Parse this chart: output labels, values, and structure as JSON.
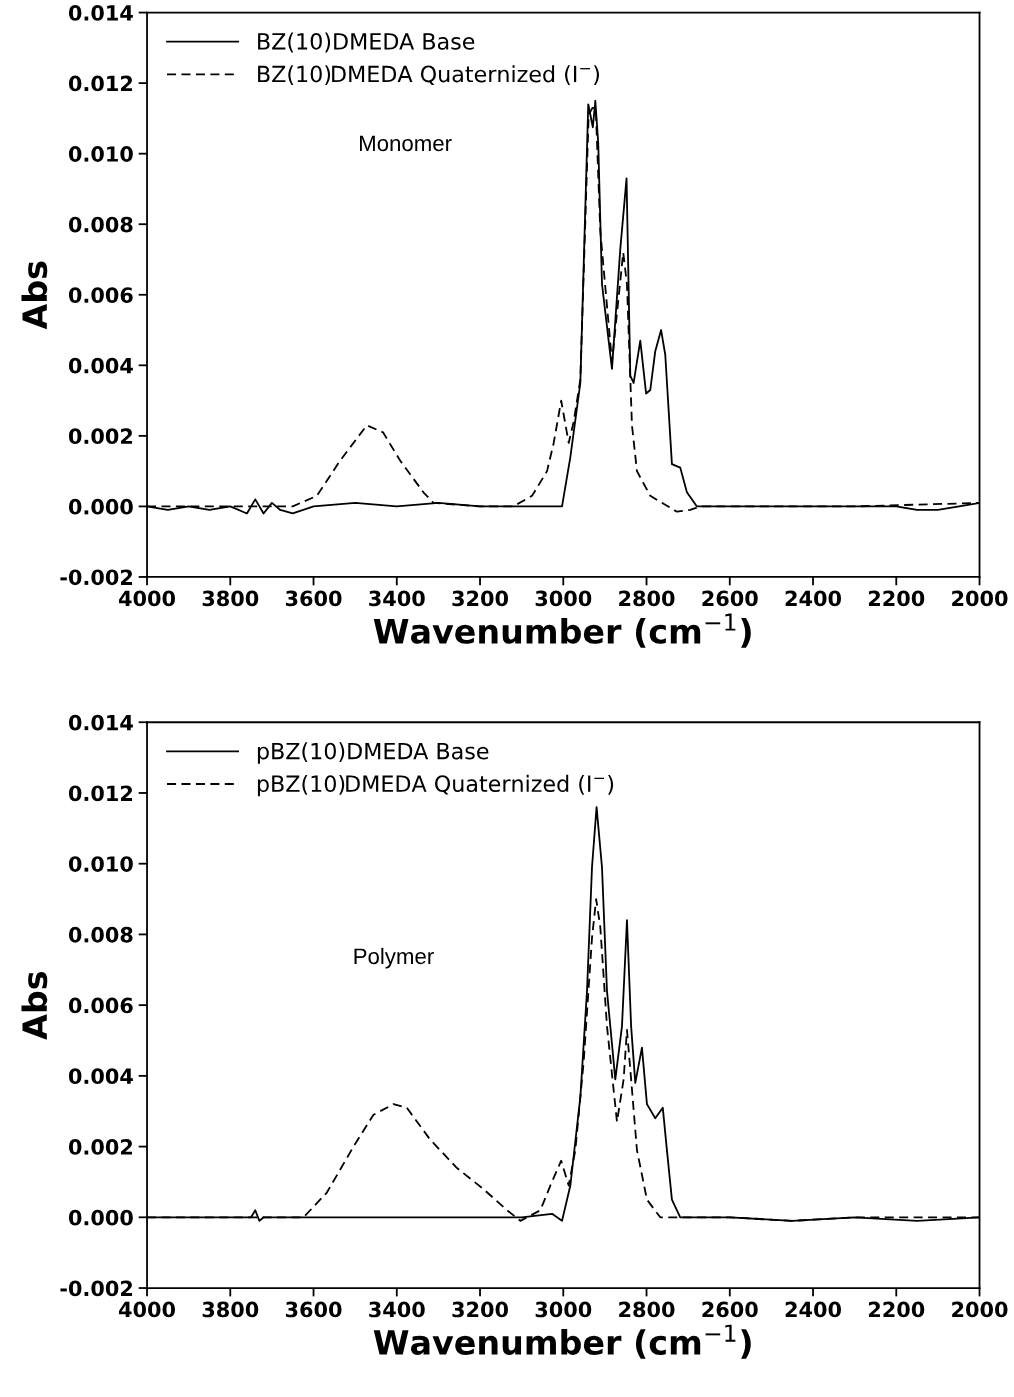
{
  "chart_data": [
    {
      "type": "line",
      "xlabel": "Wavenumber (cm$^{−1}$)",
      "ylabel": "Abs",
      "xlim": [
        4000,
        2000
      ],
      "ylim": [
        -0.002,
        0.014
      ],
      "xticks": [
        4000,
        3800,
        3600,
        3400,
        3200,
        3000,
        2800,
        2600,
        2400,
        2200,
        2000
      ],
      "yticks": [
        {
          "value": -0.002,
          "label": "-0.002"
        },
        {
          "value": 0,
          "label": "0.000"
        },
        {
          "value": 0.002,
          "label": "0.002"
        },
        {
          "value": 0.004,
          "label": "0.004"
        },
        {
          "value": 0.006,
          "label": "0.006"
        },
        {
          "value": 0.008,
          "label": "0.008"
        },
        {
          "value": 0.01,
          "label": "0.010"
        },
        {
          "value": 0.012,
          "label": "0.012"
        },
        {
          "value": 0.014,
          "label": "0.014"
        }
      ],
      "legend": "top left",
      "grid": false,
      "annotations": [
        "Monomer"
      ],
      "series": [
        {
          "name": "BZ(10)DMEDA Base",
          "color": "#000000",
          "line_style": "solid",
          "x": [
            4000,
            3950,
            3900,
            3850,
            3800,
            3760,
            3740,
            3720,
            3700,
            3680,
            3650,
            3600,
            3500,
            3400,
            3300,
            3200,
            3100,
            3003,
            2983,
            2959,
            2940,
            2929,
            2923,
            2916,
            2907,
            2883,
            2863,
            2848,
            2839,
            2831,
            2815,
            2801,
            2791,
            2779,
            2765,
            2755,
            2739,
            2719,
            2703,
            2679,
            2600,
            2500,
            2400,
            2300,
            2200,
            2150,
            2100,
            2000
          ],
          "values": [
            0.0,
            -0.0001,
            0.0,
            -0.0001,
            0.0,
            -0.0002,
            0.0002,
            -0.0002,
            0.0001,
            -0.0001,
            -0.0002,
            0.0,
            0.0001,
            0.0,
            0.0001,
            0.0,
            0.0,
            0.0,
            0.0014,
            0.0035,
            0.0114,
            0.01075,
            0.0115,
            0.0103,
            0.0063,
            0.0039,
            0.0073,
            0.0093,
            0.0037,
            0.0035,
            0.0047,
            0.0032,
            0.0033,
            0.0044,
            0.005,
            0.0043,
            0.0012,
            0.0011,
            0.0004,
            0.0,
            0.0,
            0.0,
            0.0,
            0.0,
            0.0,
            -0.0001,
            -0.0001,
            0.0001
          ]
        },
        {
          "name": "BZ(10)DMEDA Quaternized (I$^{−}$)",
          "color": "#000000",
          "line_style": "dashed",
          "x": [
            4000,
            3800,
            3650,
            3592,
            3536,
            3472,
            3433,
            3392,
            3336,
            3312,
            3200,
            3120,
            3075,
            3039,
            3023,
            3005,
            2987,
            2975,
            2959,
            2939,
            2930,
            2922,
            2911,
            2883,
            2856,
            2847,
            2835,
            2823,
            2791,
            2727,
            2695,
            2671,
            2500,
            2300,
            2000
          ],
          "values": [
            0.0,
            0.0,
            0.0,
            0.0003,
            0.0013,
            0.0023,
            0.0021,
            0.0013,
            0.0004,
            0.0001,
            0.0,
            0.0,
            0.0003,
            0.001,
            0.0018,
            0.003,
            0.0018,
            0.0024,
            0.0036,
            0.0111,
            0.0113,
            0.0113,
            0.0078,
            0.0041,
            0.0072,
            0.0063,
            0.0023,
            0.001,
            0.0003,
            -0.00015,
            -0.0001,
            0.0,
            0.0,
            0.0,
            0.0001
          ]
        }
      ]
    },
    {
      "type": "line",
      "xlabel": "Wavenumber (cm$^{−1}$)",
      "ylabel": "Abs",
      "xlim": [
        4000,
        2000
      ],
      "ylim": [
        -0.002,
        0.014
      ],
      "xticks": [
        4000,
        3800,
        3600,
        3400,
        3200,
        3000,
        2800,
        2600,
        2400,
        2200,
        2000
      ],
      "yticks": [
        {
          "value": -0.002,
          "label": "-0.002"
        },
        {
          "value": 0,
          "label": "0.000"
        },
        {
          "value": 0.002,
          "label": "0.002"
        },
        {
          "value": 0.004,
          "label": "0.004"
        },
        {
          "value": 0.006,
          "label": "0.006"
        },
        {
          "value": 0.008,
          "label": "0.008"
        },
        {
          "value": 0.01,
          "label": "0.010"
        },
        {
          "value": 0.012,
          "label": "0.012"
        },
        {
          "value": 0.014,
          "label": "0.014"
        }
      ],
      "legend": "top left",
      "grid": false,
      "annotations": [
        "Polymer"
      ],
      "series": [
        {
          "name": "pBZ(10)DMEDA Base",
          "color": "#000000",
          "line_style": "solid",
          "x": [
            4000,
            3900,
            3800,
            3750,
            3740,
            3730,
            3720,
            3600,
            3400,
            3200,
            3100,
            3027,
            3003,
            2983,
            2959,
            2943,
            2931,
            2920,
            2907,
            2895,
            2875,
            2859,
            2847,
            2837,
            2827,
            2811,
            2799,
            2779,
            2761,
            2751,
            2739,
            2719,
            2600,
            2450,
            2300,
            2150,
            2000
          ],
          "values": [
            0.0,
            0.0,
            0.0,
            0.0,
            0.0002,
            -0.0001,
            0.0,
            0.0,
            0.0,
            0.0,
            0.0,
            0.0001,
            -0.0001,
            0.0009,
            0.0034,
            0.0064,
            0.0099,
            0.0116,
            0.0099,
            0.0064,
            0.0039,
            0.0054,
            0.0084,
            0.0054,
            0.0038,
            0.0048,
            0.0032,
            0.0028,
            0.0031,
            0.0019,
            0.0005,
            0.0,
            0.0,
            -0.0001,
            0.0,
            -0.0001,
            0.0
          ]
        },
        {
          "name": "pBZ(10)DMEDA Quaternized (I$^{−}$)",
          "color": "#000000",
          "line_style": "dashed",
          "x": [
            4000,
            3800,
            3624,
            3568,
            3504,
            3456,
            3408,
            3376,
            3320,
            3256,
            3192,
            3135,
            3103,
            3055,
            3031,
            3005,
            2987,
            2971,
            2951,
            2931,
            2921,
            2911,
            2895,
            2871,
            2855,
            2847,
            2837,
            2823,
            2799,
            2767,
            2600,
            2450,
            2300,
            2000
          ],
          "values": [
            0.0,
            0.0,
            0.0,
            0.0007,
            0.002,
            0.0029,
            0.0032,
            0.0031,
            0.0022,
            0.0014,
            0.0008,
            0.0002,
            -0.0001,
            0.0002,
            0.0009,
            0.0016,
            0.0009,
            0.0019,
            0.0044,
            0.0079,
            0.009,
            0.0082,
            0.0054,
            0.0027,
            0.0039,
            0.0053,
            0.0039,
            0.0019,
            0.0005,
            0.0,
            0.0,
            -0.0001,
            0.0,
            0.0
          ]
        }
      ]
    }
  ]
}
